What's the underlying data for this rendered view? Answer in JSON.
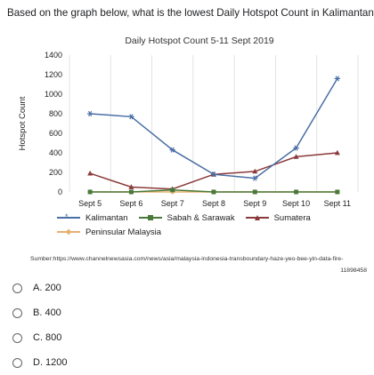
{
  "question": {
    "text": "Based on the graph below, what is the lowest Daily Hotspot Count in Kalimantan?",
    "required_mark": "*"
  },
  "chart_data": {
    "type": "line",
    "title": "Daily Hotspot Count 5-11 Sept 2019",
    "xlabel": "",
    "ylabel": "Hotspot Count",
    "ylim": [
      0,
      1400
    ],
    "yticks": [
      0,
      200,
      400,
      600,
      800,
      1000,
      1200,
      1400
    ],
    "categories": [
      "Sept 5",
      "Sept 6",
      "Sept 7",
      "Sept 8",
      "Sept 9",
      "Sept 10",
      "Sept 11"
    ],
    "grid": "vertical",
    "legend_position": "bottom",
    "series": [
      {
        "name": "Kalimantan",
        "color": "#4a6fa5",
        "marker": "star",
        "values": [
          800,
          770,
          430,
          180,
          140,
          450,
          1160
        ]
      },
      {
        "name": "Sabah & Sarawak",
        "color": "#4a7a3a",
        "marker": "square",
        "values": [
          0,
          0,
          20,
          0,
          0,
          0,
          0
        ]
      },
      {
        "name": "Sumatera",
        "color": "#8b3a3a",
        "marker": "triangle",
        "values": [
          190,
          50,
          30,
          180,
          210,
          360,
          400
        ]
      },
      {
        "name": "Peninsular Malaysia",
        "color": "#e8b070",
        "marker": "diamond",
        "values": [
          0,
          0,
          0,
          0,
          0,
          0,
          0
        ]
      }
    ]
  },
  "source": {
    "line1": "Sumber:https://www.channelnewsasia.com/news/asia/malaysia-indonesia-transboundary-haze-yeo-bee-yin-data-fire-",
    "line2": "11898458"
  },
  "options": [
    {
      "label": "A. 200"
    },
    {
      "label": "B. 400"
    },
    {
      "label": "C. 800"
    },
    {
      "label": "D. 1200"
    }
  ]
}
